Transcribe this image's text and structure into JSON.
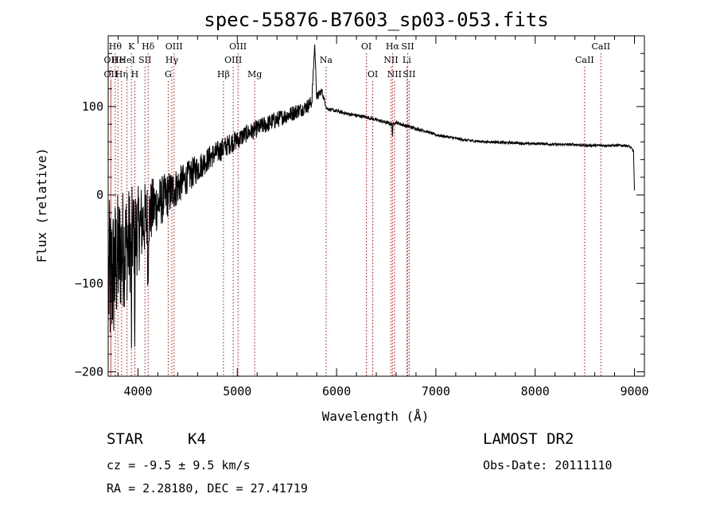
{
  "chart_data": {
    "type": "line",
    "title": "spec-55876-B7603_sp03-053.fits",
    "xlabel": "Wavelength (Å)",
    "ylabel": "Flux (relative)",
    "xlim": [
      3700,
      9100
    ],
    "ylim": [
      -205,
      180
    ],
    "xticks": [
      4000,
      5000,
      6000,
      7000,
      8000,
      9000
    ],
    "yticks": [
      -200,
      -100,
      0,
      100
    ],
    "grid": false,
    "legend": "none",
    "line_color": "#000000",
    "marker_color": "#cc0000",
    "series": [
      {
        "x": [
          3700,
          3750,
          3800,
          3850,
          3900,
          3950,
          4000,
          4050,
          4100,
          4150,
          4200,
          4250,
          4300,
          4350,
          4400,
          4450,
          4500,
          4550,
          4600,
          4650,
          4700,
          4750,
          4800,
          4850,
          4900,
          4950,
          5000,
          5050,
          5100,
          5150,
          5200,
          5250,
          5300,
          5350,
          5400,
          5450,
          5500,
          5550,
          5600,
          5650,
          5700,
          5750,
          5780,
          5800,
          5850,
          5900,
          5950,
          6000,
          6100,
          6200,
          6300,
          6400,
          6500,
          6560,
          6600,
          6700,
          6800,
          6900,
          7000,
          7100,
          7200,
          7300,
          7400,
          7500,
          7600,
          7700,
          7800,
          7900,
          8000,
          8100,
          8200,
          8300,
          8400,
          8500,
          8600,
          8700,
          8800,
          8900,
          8950,
          8990,
          9000
        ],
        "y": [
          -100,
          -90,
          -70,
          -60,
          -55,
          -45,
          -40,
          -30,
          -25,
          -15,
          -10,
          -5,
          0,
          5,
          10,
          15,
          20,
          25,
          30,
          35,
          40,
          45,
          48,
          52,
          56,
          60,
          62,
          66,
          70,
          72,
          75,
          78,
          80,
          83,
          85,
          88,
          90,
          92,
          95,
          97,
          100,
          105,
          170,
          110,
          118,
          98,
          96,
          95,
          92,
          90,
          88,
          85,
          82,
          80,
          82,
          78,
          75,
          72,
          68,
          66,
          64,
          62,
          61,
          60,
          60,
          59,
          59,
          58,
          58,
          58,
          57,
          57,
          57,
          56,
          56,
          56,
          56,
          56,
          55,
          50,
          5
        ]
      }
    ],
    "noise_amplitude": [
      95,
      85,
      75,
      70,
      65,
      55,
      50,
      45,
      40,
      35,
      30,
      28,
      26,
      24,
      22,
      20,
      18,
      18,
      16,
      15,
      14,
      14,
      13,
      13,
      12,
      12,
      11,
      11,
      10,
      10,
      10,
      10,
      10,
      10,
      10,
      9,
      9,
      9,
      9,
      8,
      8,
      8,
      0,
      6,
      4,
      2,
      2,
      2,
      2,
      2,
      2,
      2,
      2,
      2,
      2,
      2,
      2,
      1.5,
      1.5,
      1.5,
      1.5,
      1.5,
      1.5,
      1.5,
      1.5,
      1.5,
      1.5,
      1.5,
      1.5,
      1.5,
      1.5,
      1.5,
      1.5,
      1.5,
      1.5,
      1.5,
      1.5,
      1.5,
      1.5,
      1,
      0
    ],
    "absorption_dips": [
      {
        "x": 3934,
        "depth": 120
      },
      {
        "x": 3968,
        "depth": 110
      },
      {
        "x": 4101,
        "depth": 90
      },
      {
        "x": 6563,
        "depth": 15
      }
    ],
    "line_markers": [
      {
        "x": 3727,
        "row": 1,
        "label": "OII"
      },
      {
        "x": 3727,
        "row": 2,
        "label": "OII"
      },
      {
        "x": 3771,
        "row": 0,
        "label": "Hθ"
      },
      {
        "x": 3798,
        "row": 1,
        "label": "He"
      },
      {
        "x": 3835,
        "row": 2,
        "label": "Hη"
      },
      {
        "x": 3889,
        "row": 1,
        "label": "HeI"
      },
      {
        "x": 3934,
        "row": 0,
        "label": "K"
      },
      {
        "x": 3968,
        "row": 2,
        "label": "H"
      },
      {
        "x": 4070,
        "row": 1,
        "label": "SII"
      },
      {
        "x": 4102,
        "row": 0,
        "label": "Hδ"
      },
      {
        "x": 4304,
        "row": 2,
        "label": "G"
      },
      {
        "x": 4341,
        "row": 1,
        "label": "Hγ"
      },
      {
        "x": 4363,
        "row": 0,
        "label": "OIII"
      },
      {
        "x": 4861,
        "row": 2,
        "label": "Hβ"
      },
      {
        "x": 4959,
        "row": 1,
        "label": "OIII"
      },
      {
        "x": 5007,
        "row": 0,
        "label": "OIII"
      },
      {
        "x": 5175,
        "row": 2,
        "label": "Mg"
      },
      {
        "x": 5894,
        "row": 1,
        "label": "Na"
      },
      {
        "x": 6300,
        "row": 0,
        "label": "OI"
      },
      {
        "x": 6364,
        "row": 2,
        "label": "OI"
      },
      {
        "x": 6548,
        "row": 1,
        "label": "NII"
      },
      {
        "x": 6563,
        "row": 0,
        "label": "Hα"
      },
      {
        "x": 6583,
        "row": 2,
        "label": "NII"
      },
      {
        "x": 6707,
        "row": 1,
        "label": "Li"
      },
      {
        "x": 6716,
        "row": 0,
        "label": "SII"
      },
      {
        "x": 6731,
        "row": 2,
        "label": "SII"
      },
      {
        "x": 8498,
        "row": 1,
        "label": "CaII"
      },
      {
        "x": 8662,
        "row": 0,
        "label": "CaII"
      }
    ]
  },
  "info": {
    "class_label": "STAR",
    "subclass": "K4",
    "redshift_line": "cz = -9.5 ± 9.5 km/s",
    "coords_line": "RA =   2.28180, DEC =  27.41719",
    "survey": "LAMOST DR2",
    "obs_date": "Obs-Date: 20111110"
  }
}
